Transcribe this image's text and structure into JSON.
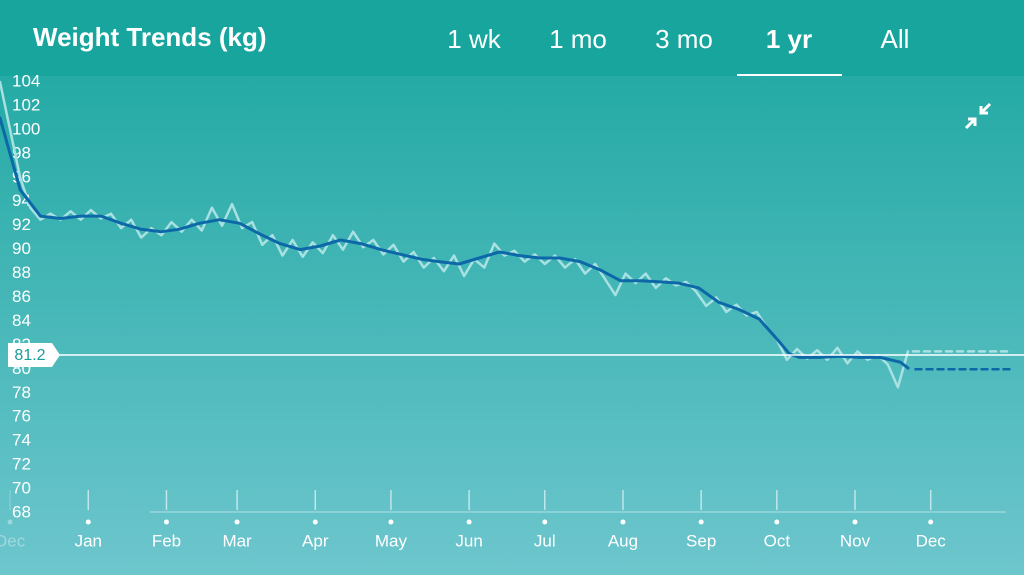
{
  "header": {
    "tabs": [
      "1 wk",
      "1 mo",
      "3 mo",
      "1 yr",
      "All"
    ],
    "active": 3
  },
  "chart_data": {
    "type": "line",
    "title": "Weight Trends (kg)",
    "ylim": [
      68,
      104
    ],
    "yticks": [
      68,
      70,
      72,
      74,
      76,
      78,
      80,
      82,
      84,
      86,
      88,
      90,
      92,
      94,
      96,
      98,
      100,
      102,
      104
    ],
    "xlim": [
      -35,
      371
    ],
    "xticks": [
      {
        "value": -31,
        "label": "Dec"
      },
      {
        "value": 0,
        "label": "Jan"
      },
      {
        "value": 31,
        "label": "Feb"
      },
      {
        "value": 59,
        "label": "Mar"
      },
      {
        "value": 90,
        "label": "Apr"
      },
      {
        "value": 120,
        "label": "May"
      },
      {
        "value": 151,
        "label": "Jun"
      },
      {
        "value": 181,
        "label": "Jul"
      },
      {
        "value": 212,
        "label": "Aug"
      },
      {
        "value": 243,
        "label": "Sep"
      },
      {
        "value": 273,
        "label": "Oct"
      },
      {
        "value": 304,
        "label": "Nov"
      },
      {
        "value": 334,
        "label": "Dec"
      }
    ],
    "goal": {
      "value": 81.2,
      "label": "81.2"
    },
    "series": [
      {
        "color": "#a9e1e3",
        "width": 2.5,
        "style": "solid",
        "x": [
          -35,
          -31,
          -27,
          -23,
          -19,
          -15,
          -11,
          -7,
          -3,
          1,
          5,
          9,
          13,
          17,
          21,
          25,
          29,
          33,
          37,
          41,
          45,
          49,
          53,
          57,
          61,
          65,
          69,
          73,
          77,
          81,
          85,
          89,
          93,
          97,
          101,
          105,
          109,
          113,
          117,
          121,
          125,
          129,
          133,
          137,
          141,
          145,
          149,
          153,
          157,
          161,
          165,
          169,
          173,
          177,
          181,
          185,
          189,
          193,
          197,
          201,
          205,
          209,
          213,
          217,
          221,
          225,
          229,
          233,
          237,
          241,
          245,
          249,
          253,
          257,
          261,
          265,
          269,
          273,
          277,
          281,
          285,
          289,
          293,
          297,
          301,
          305,
          309,
          313,
          317,
          321,
          325
        ],
        "values": [
          104,
          100,
          96,
          93.5,
          92.5,
          93,
          92.5,
          93.2,
          92.5,
          93.3,
          92.6,
          93,
          91.8,
          92.5,
          91,
          91.8,
          91.2,
          92.3,
          91.5,
          92.5,
          91.6,
          93.5,
          92,
          93.8,
          91.8,
          92.3,
          90.4,
          91.2,
          89.5,
          90.8,
          89.4,
          90.6,
          89.7,
          91.2,
          90,
          91.5,
          90.2,
          90.8,
          89.6,
          90.4,
          89,
          89.8,
          88.5,
          89.3,
          88.2,
          89.5,
          87.8,
          89.2,
          88.5,
          90.5,
          89.5,
          89.9,
          89,
          89.6,
          88.8,
          89.5,
          88.5,
          89.2,
          88,
          88.8,
          87.5,
          86.2,
          88,
          87.2,
          88,
          86.8,
          87.6,
          87,
          87.3,
          86.5,
          85.3,
          86,
          84.8,
          85.4,
          84.5,
          84.8,
          83.5,
          82.5,
          80.8,
          81.7,
          80.9,
          81.6,
          80.8,
          81.8,
          80.5,
          81.5,
          80.8,
          81.2,
          80.4,
          78.5,
          81.5
        ]
      },
      {
        "color": "#0d68a8",
        "width": 3,
        "style": "solid",
        "x": [
          -35,
          -27,
          -19,
          -11,
          -3,
          5,
          13,
          21,
          29,
          36,
          44,
          52,
          60,
          68,
          76,
          84,
          92,
          100,
          108,
          116,
          124,
          132,
          139,
          147,
          155,
          163,
          171,
          179,
          187,
          195,
          203,
          211,
          219,
          227,
          234,
          242,
          250,
          258,
          266,
          274,
          278,
          282,
          290,
          298,
          306,
          314,
          322,
          325
        ],
        "values": [
          101,
          95,
          92.8,
          92.6,
          92.8,
          92.8,
          92.2,
          91.7,
          91.5,
          91.7,
          92.2,
          92.5,
          92.2,
          91.3,
          90.5,
          90,
          90.3,
          90.8,
          90.5,
          90,
          89.6,
          89.2,
          89,
          88.8,
          89.3,
          89.8,
          89.5,
          89.3,
          89.3,
          89,
          88.3,
          87.4,
          87.4,
          87.3,
          87.2,
          86.8,
          85.6,
          85,
          84.2,
          82.3,
          81.3,
          81,
          81,
          81.1,
          81,
          81,
          80.6,
          80.1
        ]
      },
      {
        "color": "#a9e1e3",
        "width": 2.5,
        "style": "dashed",
        "x": [
          327,
          366
        ],
        "values": [
          81.5,
          81.5
        ]
      },
      {
        "color": "#0d68a8",
        "width": 2.5,
        "style": "dashed",
        "x": [
          328,
          366
        ],
        "values": [
          80,
          80
        ]
      }
    ]
  }
}
